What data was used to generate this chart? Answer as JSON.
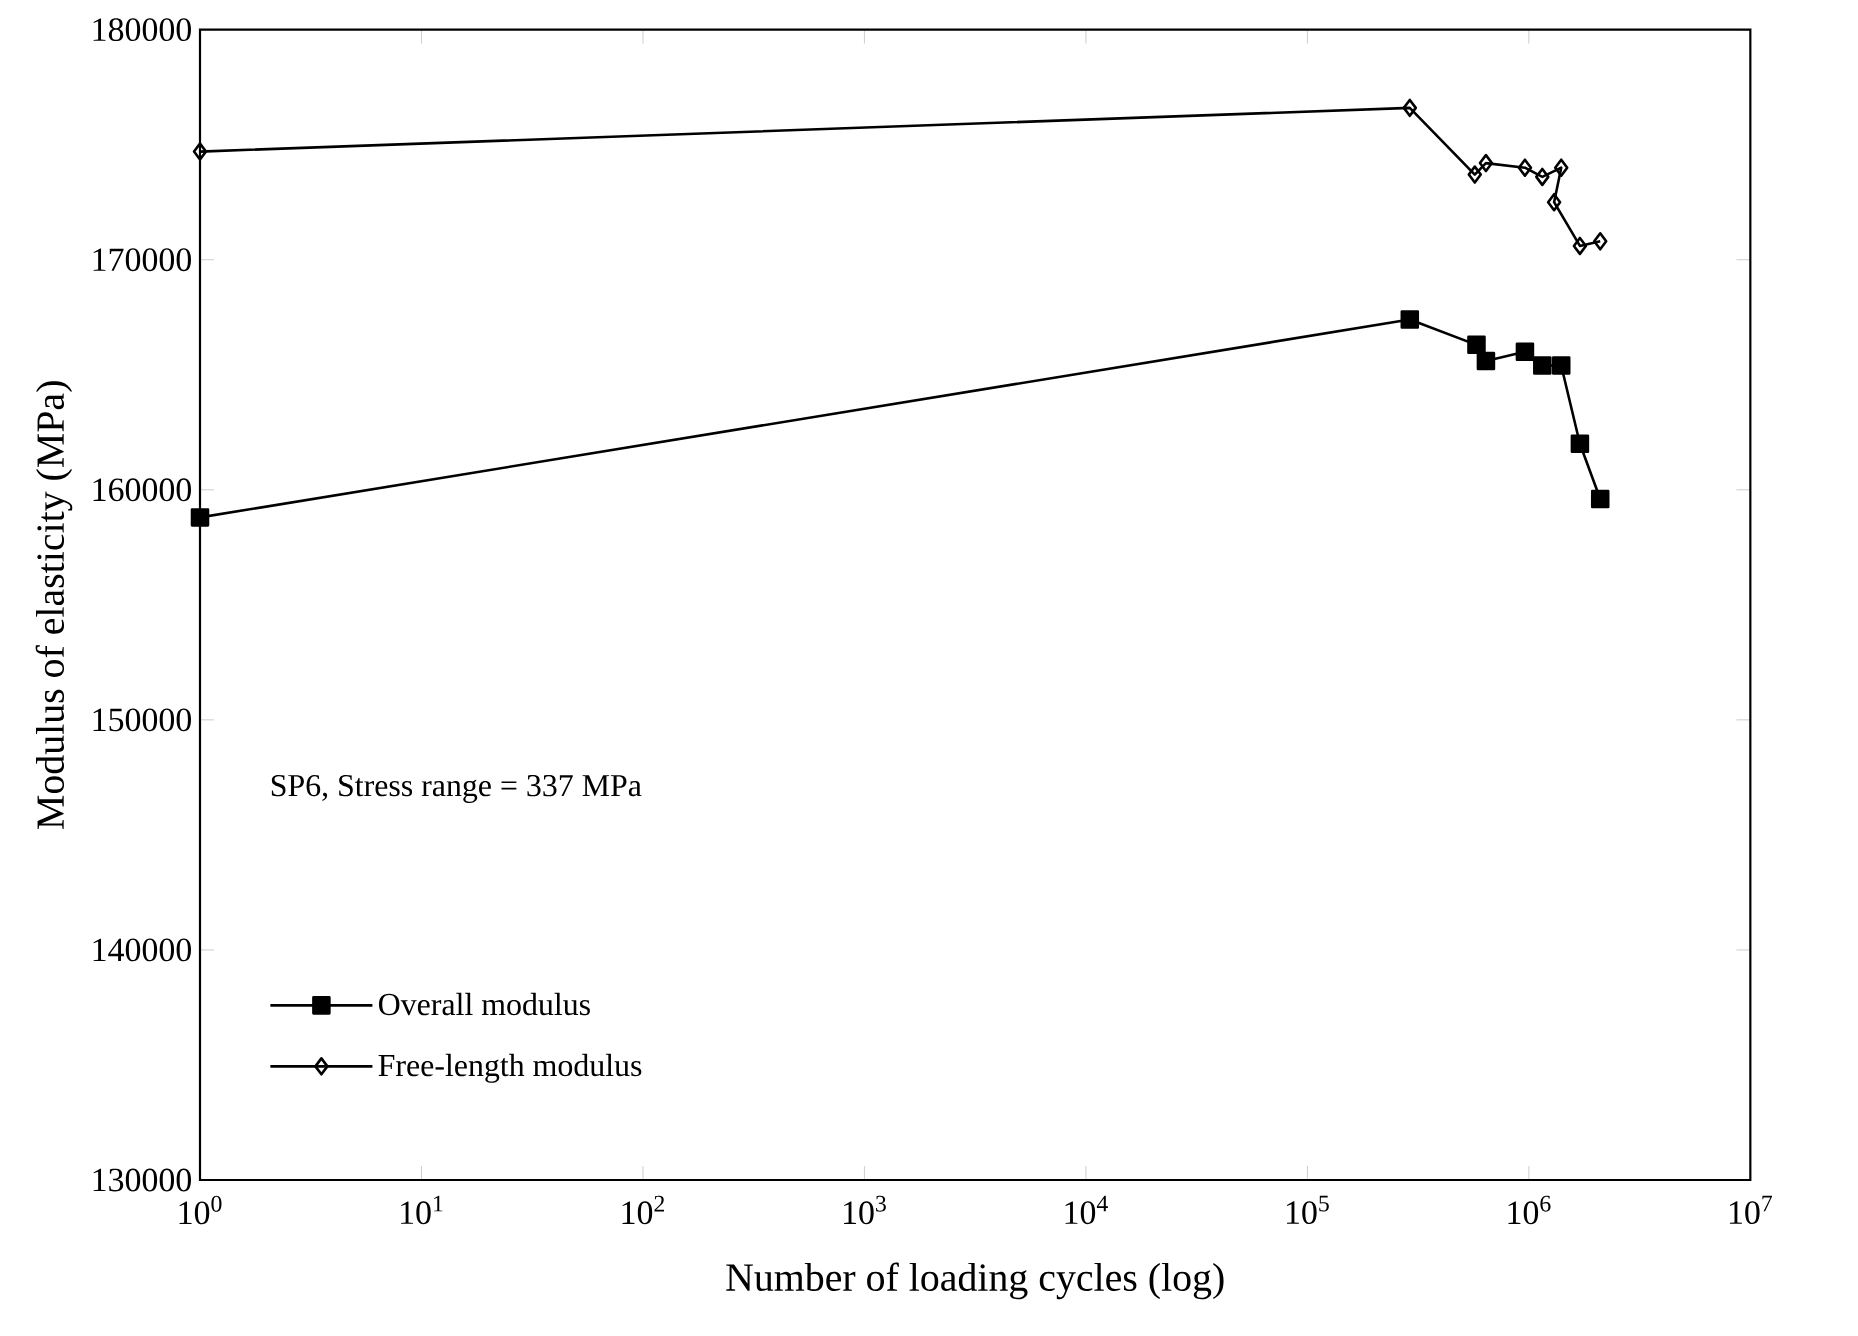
{
  "chart_data": {
    "type": "line",
    "xlabel": "Number of loading cycles (log)",
    "ylabel": "Modulus of elasticity (MPa)",
    "annotations": [
      "SP6, Stress range = 337 MPa"
    ],
    "log": "x",
    "xlim": [
      1,
      10000000
    ],
    "ylim": [
      130000,
      180000
    ],
    "xticks": [
      {
        "value": 1,
        "label": "10$^{0}$"
      },
      {
        "value": 10,
        "label": "10$^{1}$"
      },
      {
        "value": 100,
        "label": "10$^{2}$"
      },
      {
        "value": 1000,
        "label": "10$^{3}$"
      },
      {
        "value": 10000,
        "label": "10$^{4}$"
      },
      {
        "value": 100000,
        "label": "10$^{5}$"
      },
      {
        "value": 1000000,
        "label": "10$^{6}$"
      },
      {
        "value": 10000000,
        "label": "10$^{7}$"
      }
    ],
    "yticks": [
      130000,
      140000,
      150000,
      160000,
      170000,
      180000
    ],
    "legend": "bottom left",
    "grid": false,
    "series": [
      {
        "name": "Overall modulus",
        "color": "#000000",
        "marker": "square",
        "x": [
          1,
          290000,
          580000,
          640000,
          960000,
          1150000,
          1400000,
          1700000,
          2100000
        ],
        "values": [
          158800,
          167400,
          166300,
          165600,
          166000,
          165400,
          165400,
          162000,
          159600
        ]
      },
      {
        "name": "Free-length modulus",
        "color": "#000000",
        "marker": "diamond",
        "x": [
          1,
          290000,
          570000,
          640000,
          960000,
          1150000,
          1400000,
          1300000,
          1700000,
          2100000
        ],
        "values": [
          174700,
          176600,
          173700,
          174200,
          174000,
          173600,
          174000,
          172500,
          170600,
          170800
        ]
      }
    ]
  }
}
